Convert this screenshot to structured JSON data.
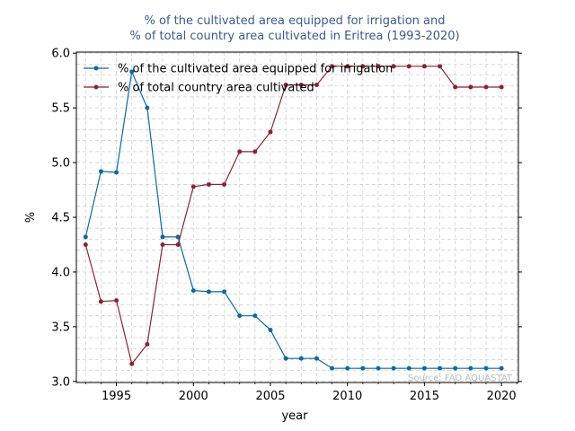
{
  "chart_data": {
    "type": "line",
    "title_lines": [
      "% of the cultivated area equipped for irrigation and",
      "% of total country area cultivated in Eritrea (1993-2020)"
    ],
    "xlabel": "year",
    "ylabel": "%",
    "xlim": [
      1992.4,
      2021.1
    ],
    "ylim": [
      2.99,
      6.01
    ],
    "x_ticks": [
      1995,
      2000,
      2005,
      2010,
      2015,
      2020
    ],
    "y_ticks": [
      3.0,
      3.5,
      4.0,
      4.5,
      5.0,
      5.5,
      6.0
    ],
    "grid": true,
    "legend_placement": "top-left",
    "source": "Source: FAO AQUASTAT",
    "x": [
      1993,
      1994,
      1995,
      1996,
      1997,
      1998,
      1999,
      2000,
      2001,
      2002,
      2003,
      2004,
      2005,
      2006,
      2007,
      2008,
      2009,
      2010,
      2011,
      2012,
      2013,
      2014,
      2015,
      2016,
      2017,
      2018,
      2019,
      2020
    ],
    "series": [
      {
        "name": "% of the cultivated area equipped for irrigation",
        "color": "#0a6aa5",
        "values": [
          4.32,
          4.92,
          4.91,
          5.83,
          5.5,
          4.32,
          4.32,
          3.83,
          3.82,
          3.82,
          3.6,
          3.6,
          3.47,
          3.21,
          3.21,
          3.21,
          3.12,
          3.12,
          3.12,
          3.12,
          3.12,
          3.12,
          3.12,
          3.12,
          3.12,
          3.12,
          3.12,
          3.12
        ]
      },
      {
        "name": "% of total country area cultivated",
        "color": "#8b2336",
        "values": [
          4.25,
          3.73,
          3.74,
          3.16,
          3.34,
          4.25,
          4.25,
          4.78,
          4.8,
          4.8,
          5.1,
          5.1,
          5.28,
          5.71,
          5.71,
          5.71,
          5.88,
          5.88,
          5.88,
          5.88,
          5.88,
          5.88,
          5.88,
          5.88,
          5.69,
          5.69,
          5.69,
          5.69
        ]
      }
    ]
  },
  "colors": {
    "title": "#3b5a8f",
    "grid": "#d0d0d0",
    "source": "#bbbbbb"
  }
}
